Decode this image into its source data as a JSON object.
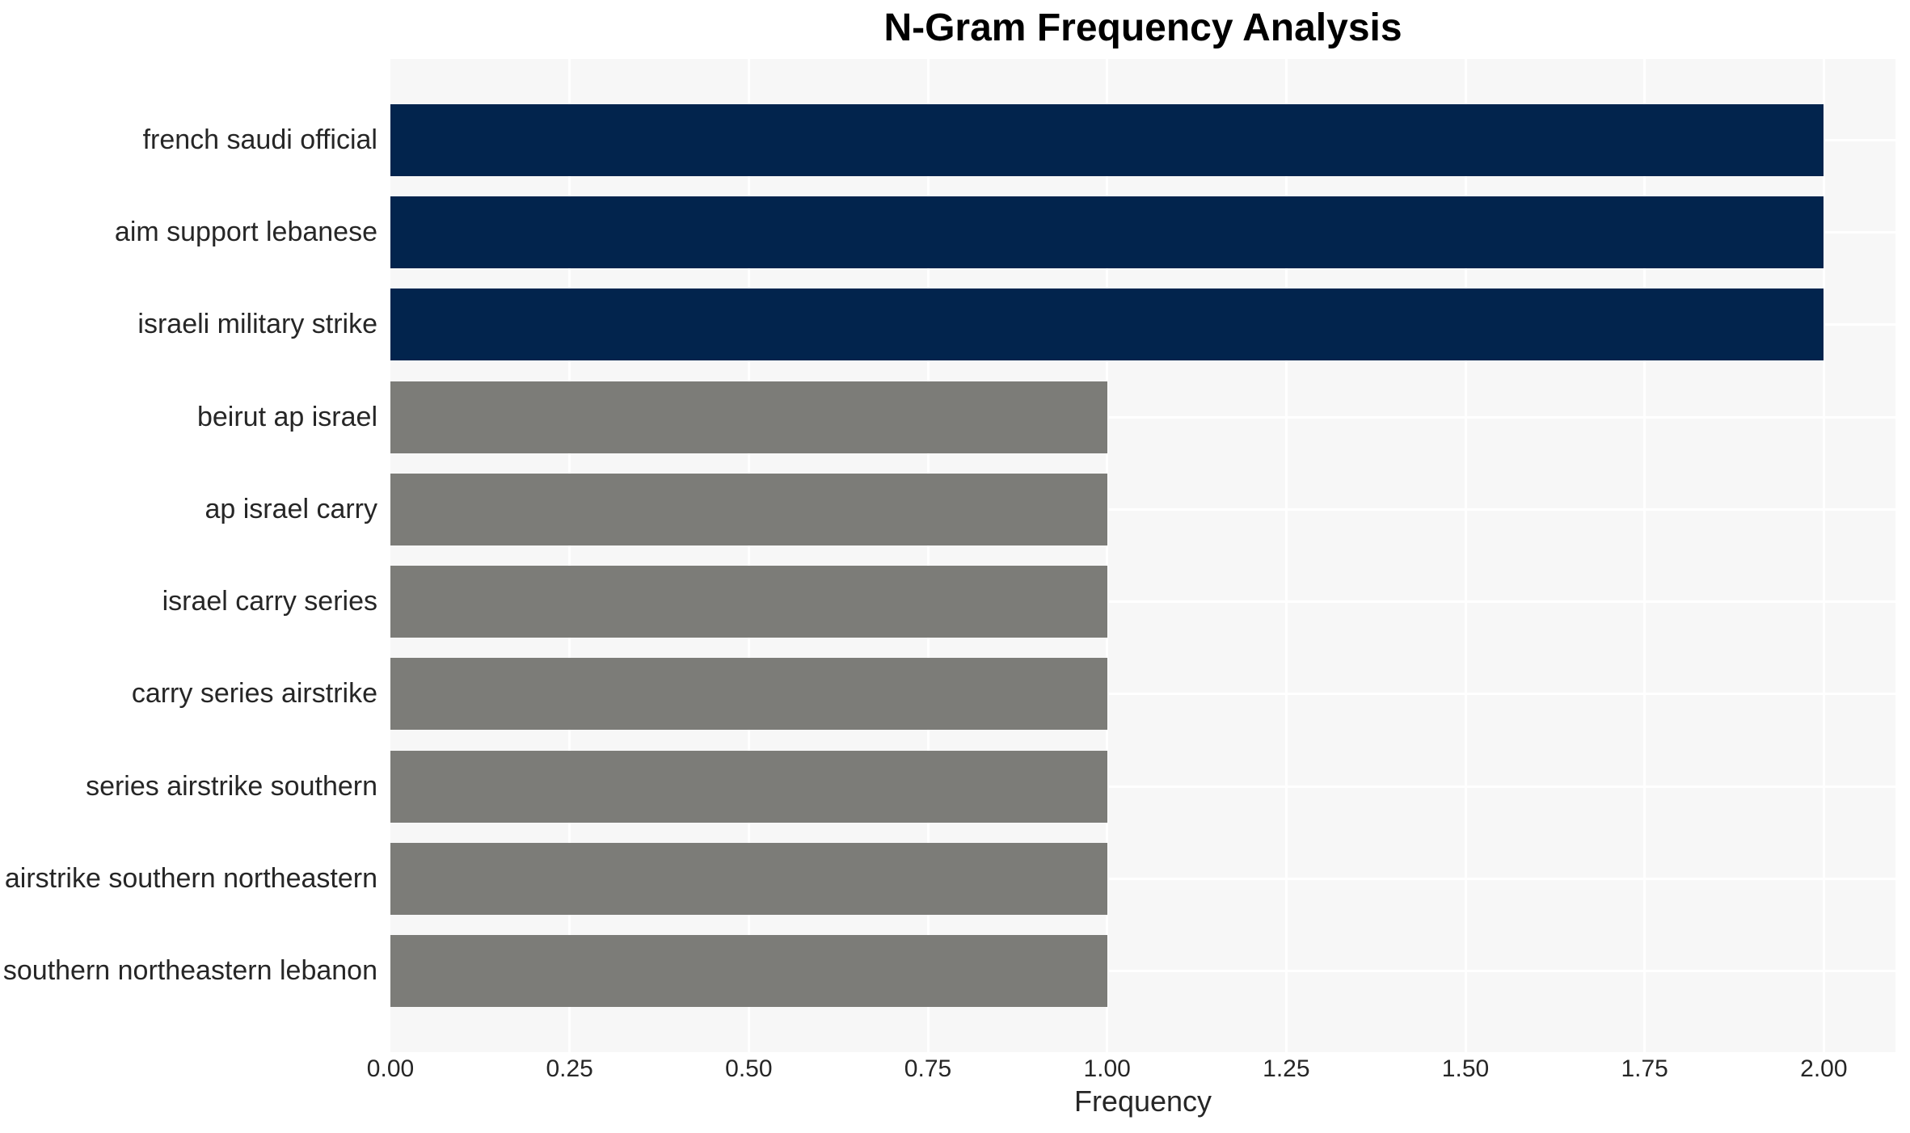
{
  "chart_data": {
    "type": "bar",
    "orientation": "horizontal",
    "title": "N-Gram Frequency Analysis",
    "xlabel": "Frequency",
    "ylabel": "",
    "grid": true,
    "legend": false,
    "xlim": [
      0,
      2.1
    ],
    "xtick_values": [
      0,
      0.25,
      0.5,
      0.75,
      1.0,
      1.25,
      1.5,
      1.75,
      2.0
    ],
    "xtick_labels": [
      "0.00",
      "0.25",
      "0.50",
      "0.75",
      "1.00",
      "1.25",
      "1.50",
      "1.75",
      "2.00"
    ],
    "categories": [
      "french saudi official",
      "aim support lebanese",
      "israeli military strike",
      "beirut ap israel",
      "ap israel carry",
      "israel carry series",
      "carry series airstrike",
      "series airstrike southern",
      "airstrike southern northeastern",
      "southern northeastern lebanon"
    ],
    "values": [
      2,
      2,
      2,
      1,
      1,
      1,
      1,
      1,
      1,
      1
    ],
    "bar_colors": [
      "#02244d",
      "#02244d",
      "#02244d",
      "#7c7c78",
      "#7c7c78",
      "#7c7c78",
      "#7c7c78",
      "#7c7c78",
      "#7c7c78",
      "#7c7c78"
    ]
  },
  "colors": {
    "bar_high_frequency": "#02244d",
    "bar_low_frequency": "#7c7c78",
    "plot_background": "#f7f7f7",
    "gridline": "#ffffff",
    "tick_text": "#262626",
    "title_text": "#000000"
  }
}
